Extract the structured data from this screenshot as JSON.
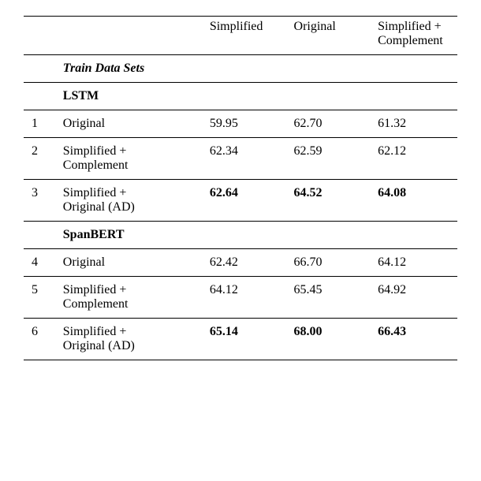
{
  "table": {
    "columns": {
      "col1": "Simplified",
      "col2": "Original",
      "col3_line1": "Simplified +",
      "col3_line2": "Complement"
    },
    "section_header": "Train Data Sets",
    "group1": {
      "title": "LSTM",
      "rows": [
        {
          "num": "1",
          "label": "Original",
          "v1": "59.95",
          "v2": "62.70",
          "v3": "61.32",
          "bold": false
        },
        {
          "num": "2",
          "label_line1": "Simplified +",
          "label_line2": "Complement",
          "v1": "62.34",
          "v2": "62.59",
          "v3": "62.12",
          "bold": false
        },
        {
          "num": "3",
          "label_line1": "Simplified +",
          "label_line2": "Original (AD)",
          "v1": "62.64",
          "v2": "64.52",
          "v3": "64.08",
          "bold": true
        }
      ]
    },
    "group2": {
      "title": "SpanBERT",
      "rows": [
        {
          "num": "4",
          "label": "Original",
          "v1": "62.42",
          "v2": "66.70",
          "v3": "64.12",
          "bold": false
        },
        {
          "num": "5",
          "label_line1": "Simplified +",
          "label_line2": "Complement",
          "v1": "64.12",
          "v2": "65.45",
          "v3": "64.92",
          "bold": false
        },
        {
          "num": "6",
          "label_line1": "Simplified +",
          "label_line2": "Original (AD)",
          "v1": "65.14",
          "v2": "68.00",
          "v3": "66.43",
          "bold": true
        }
      ]
    }
  }
}
